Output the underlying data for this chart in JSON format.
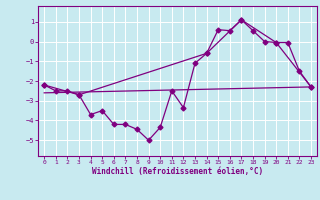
{
  "xlabel": "Windchill (Refroidissement éolien,°C)",
  "background_color": "#c8eaf0",
  "grid_color": "#ffffff",
  "line_color": "#800080",
  "xlim": [
    -0.5,
    23.5
  ],
  "ylim": [
    -5.8,
    1.8
  ],
  "yticks": [
    1,
    0,
    -1,
    -2,
    -3,
    -4,
    -5
  ],
  "xticks": [
    0,
    1,
    2,
    3,
    4,
    5,
    6,
    7,
    8,
    9,
    10,
    11,
    12,
    13,
    14,
    15,
    16,
    17,
    18,
    19,
    20,
    21,
    22,
    23
  ],
  "series1_x": [
    0,
    1,
    2,
    3,
    4,
    5,
    6,
    7,
    8,
    9,
    10,
    11,
    12,
    13,
    14,
    15,
    16,
    17,
    18,
    19,
    20,
    21,
    22,
    23
  ],
  "series1_y": [
    -2.2,
    -2.5,
    -2.5,
    -2.7,
    -3.7,
    -3.5,
    -4.2,
    -4.2,
    -4.45,
    -5.0,
    -4.35,
    -2.5,
    -3.35,
    -1.1,
    -0.6,
    0.6,
    0.55,
    1.1,
    0.55,
    0.0,
    -0.05,
    -0.05,
    -1.5,
    -2.3
  ],
  "series2_x": [
    0,
    3,
    14,
    17,
    20,
    23
  ],
  "series2_y": [
    -2.2,
    -2.7,
    -0.6,
    1.1,
    -0.05,
    -2.3
  ],
  "series3_x": [
    0,
    23
  ],
  "series3_y": [
    -2.6,
    -2.3
  ],
  "marker": "D",
  "marker_size": 2.5,
  "tick_fontsize": 4.5,
  "xlabel_fontsize": 5.5
}
